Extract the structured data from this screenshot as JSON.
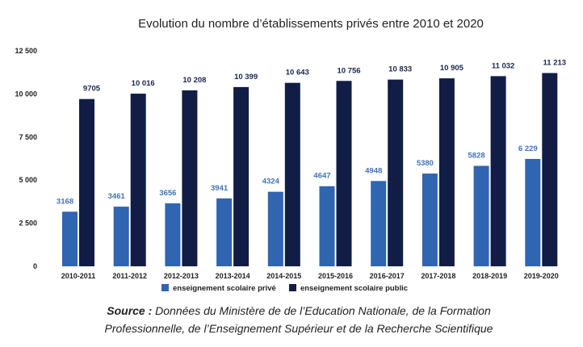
{
  "chart_data": {
    "type": "bar",
    "title": "Evolution du nombre d’établissements privés entre 2010 et 2020",
    "xlabel": "",
    "ylabel": "",
    "ylim": [
      0,
      12500
    ],
    "yticks": [
      0,
      2500,
      5000,
      7500,
      10000,
      12500
    ],
    "ytick_labels": [
      "0",
      "2 500",
      "5 000",
      "7 500",
      "10 000",
      "12 500"
    ],
    "grid": false,
    "legend_position": "bottom",
    "categories": [
      "2010-2011",
      "2011-2012",
      "2012-2013",
      "2013-2014",
      "2014-2015",
      "2015-2016",
      "2016-2017",
      "2017-2018",
      "2018-2019",
      "2019-2020"
    ],
    "series": [
      {
        "name": "enseignement scolaire privé",
        "color": "#2f65b1",
        "values": [
          3168,
          3461,
          3656,
          3941,
          4324,
          4647,
          4948,
          5380,
          5828,
          6229
        ],
        "labels": [
          "3168",
          "3461",
          "3656",
          "3941",
          "4324",
          "4647",
          "4948",
          "5380",
          "5828",
          "6 229"
        ]
      },
      {
        "name": "enseignement scolaire public",
        "color": "#111d45",
        "values": [
          9705,
          10016,
          10208,
          10399,
          10643,
          10756,
          10833,
          10905,
          11032,
          11213
        ],
        "labels": [
          "9705",
          "10 016",
          "10 208",
          "10 399",
          "10 643",
          "10 756",
          "10 833",
          "10 905",
          "11 032",
          "11 213"
        ]
      }
    ]
  },
  "source": {
    "prefix": "Source :",
    "line1": " Données du Ministère de de l’Education Nationale, de la Formation",
    "line2": "Professionnelle, de l’Enseignement Supérieur et de la Recherche Scientifique"
  }
}
